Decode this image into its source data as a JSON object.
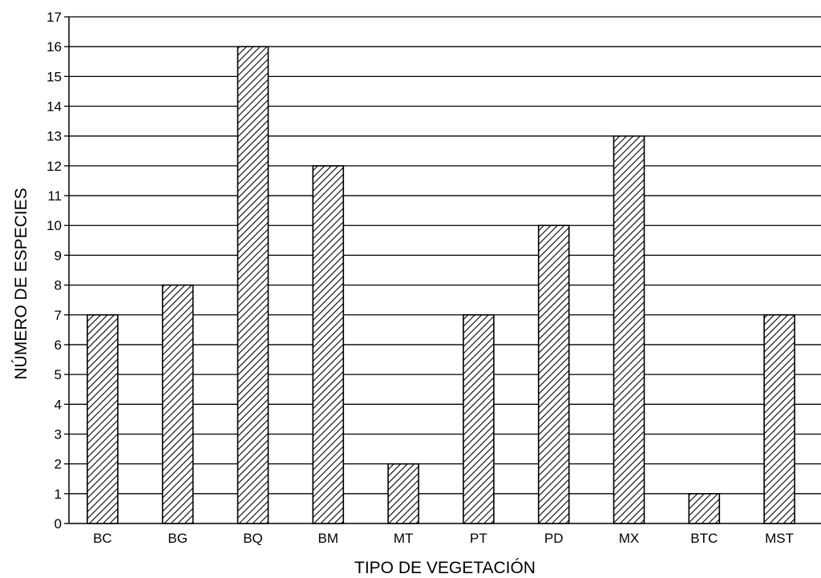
{
  "chart_data": {
    "type": "bar",
    "categories": [
      "BC",
      "BG",
      "BQ",
      "BM",
      "MT",
      "PT",
      "PD",
      "MX",
      "BTC",
      "MST"
    ],
    "values": [
      7,
      8,
      16,
      12,
      2,
      7,
      10,
      13,
      1,
      7
    ],
    "xlabel": "TIPO DE VEGETACIÓN",
    "ylabel": "NÚMERO DE ESPECIES",
    "ylim": [
      0,
      17
    ],
    "yticks": [
      0,
      1,
      2,
      3,
      4,
      5,
      6,
      7,
      8,
      9,
      10,
      11,
      12,
      13,
      14,
      15,
      16,
      17
    ],
    "grid": true,
    "legend": "none",
    "bar_fill": "diagonal-hatch",
    "colors": {
      "bar_stroke": "#000000",
      "hatch": "#000000",
      "background": "#ffffff",
      "grid": "#000000",
      "watermark": "#d9d9d9"
    }
  }
}
